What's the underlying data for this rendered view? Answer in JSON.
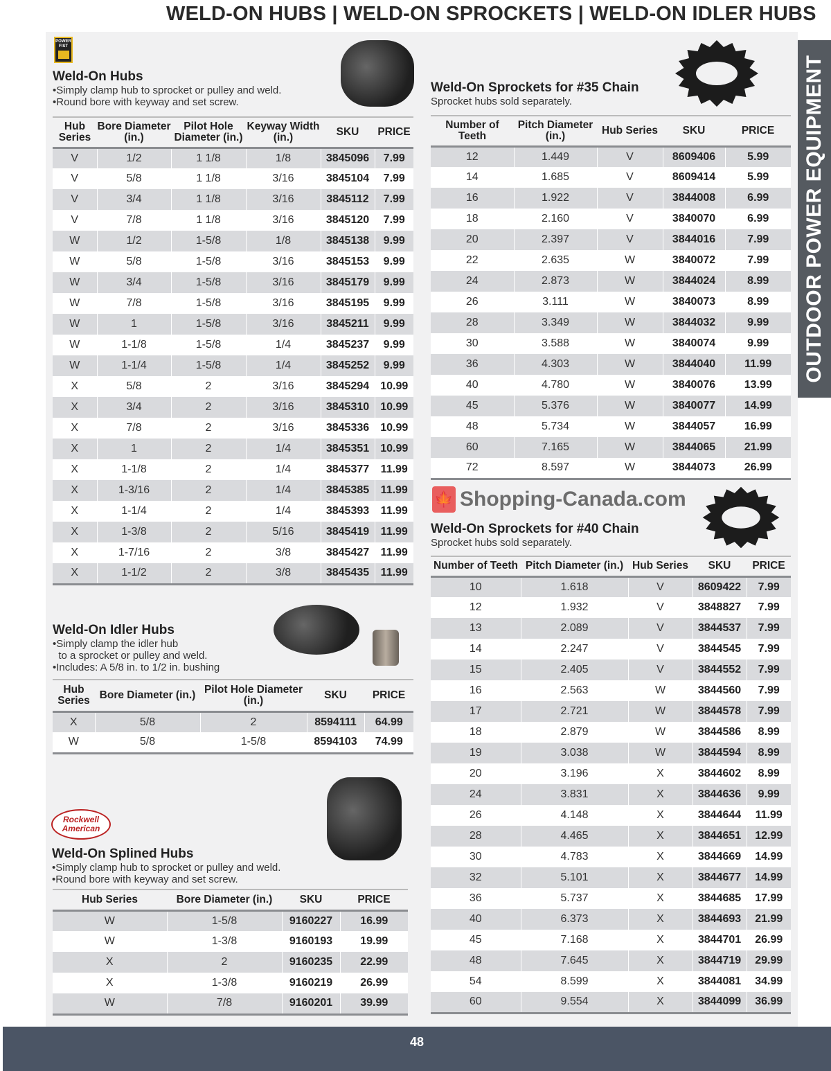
{
  "page_title": "WELD-ON HUBS | WELD-ON SPROCKETS | WELD-ON IDLER HUBS",
  "side_tab": "OUTDOOR POWER EQUIPMENT",
  "page_number": "48",
  "watermark": "Shopping-Canada.com",
  "brands": {
    "power_fist": "POWER FIST",
    "rockwell": "Rockwell American"
  },
  "hubs": {
    "title": "Weld-On Hubs",
    "bullets": [
      "•Simply clamp hub to sprocket or pulley and weld.",
      "•Round bore with keyway and set screw."
    ],
    "headers": [
      "Hub Series",
      "Bore Diameter (in.)",
      "Pilot Hole Diameter (in.)",
      "Keyway Width (in.)",
      "SKU",
      "PRICE"
    ],
    "rows": [
      [
        "V",
        "1/2",
        "1 1/8",
        "1/8",
        "3845096",
        "7.99"
      ],
      [
        "V",
        "5/8",
        "1 1/8",
        "3/16",
        "3845104",
        "7.99"
      ],
      [
        "V",
        "3/4",
        "1 1/8",
        "3/16",
        "3845112",
        "7.99"
      ],
      [
        "V",
        "7/8",
        "1 1/8",
        "3/16",
        "3845120",
        "7.99"
      ],
      [
        "W",
        "1/2",
        "1-5/8",
        "1/8",
        "3845138",
        "9.99"
      ],
      [
        "W",
        "5/8",
        "1-5/8",
        "3/16",
        "3845153",
        "9.99"
      ],
      [
        "W",
        "3/4",
        "1-5/8",
        "3/16",
        "3845179",
        "9.99"
      ],
      [
        "W",
        "7/8",
        "1-5/8",
        "3/16",
        "3845195",
        "9.99"
      ],
      [
        "W",
        "1",
        "1-5/8",
        "3/16",
        "3845211",
        "9.99"
      ],
      [
        "W",
        "1-1/8",
        "1-5/8",
        "1/4",
        "3845237",
        "9.99"
      ],
      [
        "W",
        "1-1/4",
        "1-5/8",
        "1/4",
        "3845252",
        "9.99"
      ],
      [
        "X",
        "5/8",
        "2",
        "3/16",
        "3845294",
        "10.99"
      ],
      [
        "X",
        "3/4",
        "2",
        "3/16",
        "3845310",
        "10.99"
      ],
      [
        "X",
        "7/8",
        "2",
        "3/16",
        "3845336",
        "10.99"
      ],
      [
        "X",
        "1",
        "2",
        "1/4",
        "3845351",
        "10.99"
      ],
      [
        "X",
        "1-1/8",
        "2",
        "1/4",
        "3845377",
        "11.99"
      ],
      [
        "X",
        "1-3/16",
        "2",
        "1/4",
        "3845385",
        "11.99"
      ],
      [
        "X",
        "1-1/4",
        "2",
        "1/4",
        "3845393",
        "11.99"
      ],
      [
        "X",
        "1-3/8",
        "2",
        "5/16",
        "3845419",
        "11.99"
      ],
      [
        "X",
        "1-7/16",
        "2",
        "3/8",
        "3845427",
        "11.99"
      ],
      [
        "X",
        "1-1/2",
        "2",
        "3/8",
        "3845435",
        "11.99"
      ]
    ]
  },
  "sprockets35": {
    "title": "Weld-On Sprockets for #35 Chain",
    "subtitle": "Sprocket hubs sold separately.",
    "headers": [
      "Number of Teeth",
      "Pitch Diameter (in.)",
      "Hub Series",
      "SKU",
      "PRICE"
    ],
    "rows": [
      [
        "12",
        "1.449",
        "V",
        "8609406",
        "5.99"
      ],
      [
        "14",
        "1.685",
        "V",
        "8609414",
        "5.99"
      ],
      [
        "16",
        "1.922",
        "V",
        "3844008",
        "6.99"
      ],
      [
        "18",
        "2.160",
        "V",
        "3840070",
        "6.99"
      ],
      [
        "20",
        "2.397",
        "V",
        "3844016",
        "7.99"
      ],
      [
        "22",
        "2.635",
        "W",
        "3840072",
        "7.99"
      ],
      [
        "24",
        "2.873",
        "W",
        "3844024",
        "8.99"
      ],
      [
        "26",
        "3.111",
        "W",
        "3840073",
        "8.99"
      ],
      [
        "28",
        "3.349",
        "W",
        "3844032",
        "9.99"
      ],
      [
        "30",
        "3.588",
        "W",
        "3840074",
        "9.99"
      ],
      [
        "36",
        "4.303",
        "W",
        "3844040",
        "11.99"
      ],
      [
        "40",
        "4.780",
        "W",
        "3840076",
        "13.99"
      ],
      [
        "45",
        "5.376",
        "W",
        "3840077",
        "14.99"
      ],
      [
        "48",
        "5.734",
        "W",
        "3844057",
        "16.99"
      ],
      [
        "60",
        "7.165",
        "W",
        "3844065",
        "21.99"
      ],
      [
        "72",
        "8.597",
        "W",
        "3844073",
        "26.99"
      ]
    ]
  },
  "sprockets40": {
    "title": "Weld-On Sprockets for #40 Chain",
    "subtitle": "Sprocket hubs sold separately.",
    "headers": [
      "Number of Teeth",
      "Pitch Diameter (in.)",
      "Hub Series",
      "SKU",
      "PRICE"
    ],
    "rows": [
      [
        "10",
        "1.618",
        "V",
        "8609422",
        "7.99"
      ],
      [
        "12",
        "1.932",
        "V",
        "3848827",
        "7.99"
      ],
      [
        "13",
        "2.089",
        "V",
        "3844537",
        "7.99"
      ],
      [
        "14",
        "2.247",
        "V",
        "3844545",
        "7.99"
      ],
      [
        "15",
        "2.405",
        "V",
        "3844552",
        "7.99"
      ],
      [
        "16",
        "2.563",
        "W",
        "3844560",
        "7.99"
      ],
      [
        "17",
        "2.721",
        "W",
        "3844578",
        "7.99"
      ],
      [
        "18",
        "2.879",
        "W",
        "3844586",
        "8.99"
      ],
      [
        "19",
        "3.038",
        "W",
        "3844594",
        "8.99"
      ],
      [
        "20",
        "3.196",
        "X",
        "3844602",
        "8.99"
      ],
      [
        "24",
        "3.831",
        "X",
        "3844636",
        "9.99"
      ],
      [
        "26",
        "4.148",
        "X",
        "3844644",
        "11.99"
      ],
      [
        "28",
        "4.465",
        "X",
        "3844651",
        "12.99"
      ],
      [
        "30",
        "4.783",
        "X",
        "3844669",
        "14.99"
      ],
      [
        "32",
        "5.101",
        "X",
        "3844677",
        "14.99"
      ],
      [
        "36",
        "5.737",
        "X",
        "3844685",
        "17.99"
      ],
      [
        "40",
        "6.373",
        "X",
        "3844693",
        "21.99"
      ],
      [
        "45",
        "7.168",
        "X",
        "3844701",
        "26.99"
      ],
      [
        "48",
        "7.645",
        "X",
        "3844719",
        "29.99"
      ],
      [
        "54",
        "8.599",
        "X",
        "3844081",
        "34.99"
      ],
      [
        "60",
        "9.554",
        "X",
        "3844099",
        "36.99"
      ]
    ]
  },
  "idler": {
    "title": "Weld-On Idler Hubs",
    "bullets": [
      "•Simply clamp the idler hub",
      "  to a sprocket or pulley and weld.",
      "•Includes: A 5/8 in. to 1/2 in. bushing"
    ],
    "headers": [
      "Hub Series",
      "Bore Diameter (in.)",
      "Pilot Hole Diameter (in.)",
      "SKU",
      "PRICE"
    ],
    "rows": [
      [
        "X",
        "5/8",
        "2",
        "8594111",
        "64.99"
      ],
      [
        "W",
        "5/8",
        "1-5/8",
        "8594103",
        "74.99"
      ]
    ]
  },
  "splined": {
    "title": "Weld-On Splined Hubs",
    "bullets": [
      "•Simply clamp hub to sprocket or pulley and weld.",
      "•Round bore with keyway and set screw."
    ],
    "headers": [
      "Hub Series",
      "Bore Diameter (in.)",
      "SKU",
      "PRICE"
    ],
    "rows": [
      [
        "W",
        "1-5/8",
        "9160227",
        "16.99"
      ],
      [
        "W",
        "1-3/8",
        "9160193",
        "19.99"
      ],
      [
        "X",
        "2",
        "9160235",
        "22.99"
      ],
      [
        "X",
        "1-3/8",
        "9160219",
        "26.99"
      ],
      [
        "W",
        "7/8",
        "9160201",
        "39.99"
      ]
    ]
  }
}
